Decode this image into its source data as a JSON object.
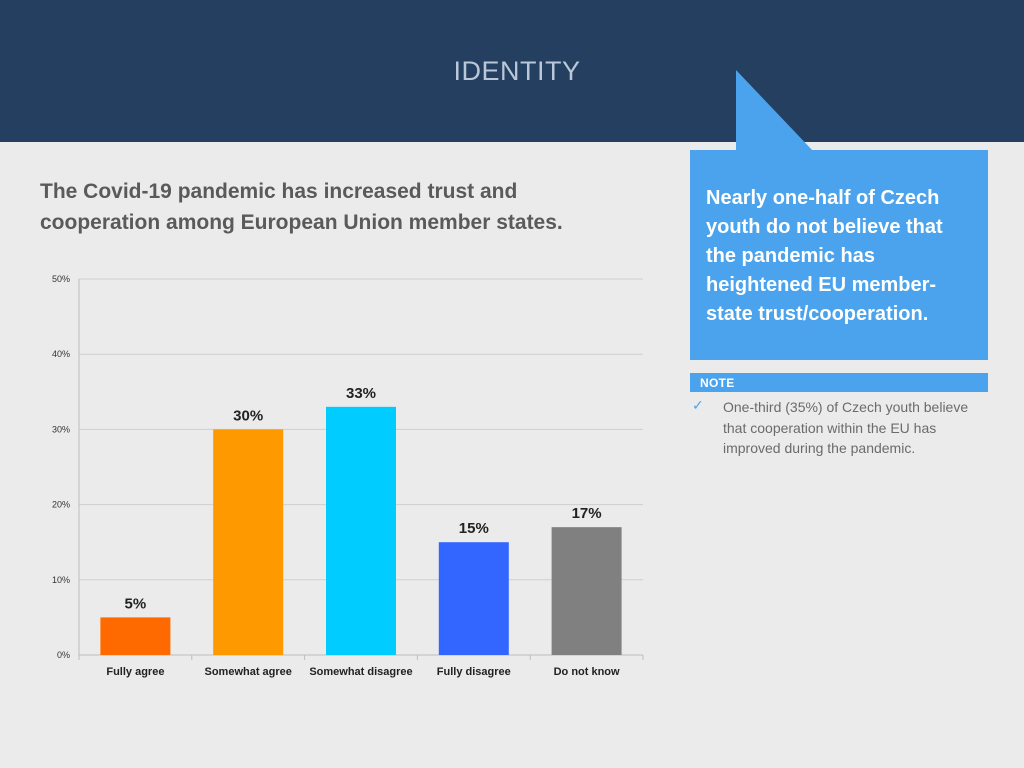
{
  "header": {
    "title": "IDENTITY"
  },
  "question": "The Covid-19 pandemic has increased trust and cooperation among European Union member states.",
  "callout": {
    "text": "Nearly one-half of Czech youth do not believe that the pandemic has heightened EU member-state trust/cooperation."
  },
  "note": {
    "label": "NOTE",
    "icon": "checkmark-icon",
    "text": "One-third (35%) of Czech youth believe that cooperation within the EU has improved during the pandemic."
  },
  "colors": {
    "header": "#243f60",
    "accent": "#4aa3ec"
  },
  "chart_data": {
    "type": "bar",
    "title": "",
    "xlabel": "",
    "ylabel": "",
    "ylim": [
      0,
      50
    ],
    "yticks": [
      0,
      10,
      20,
      30,
      40,
      50
    ],
    "ytick_labels": [
      "0%",
      "10%",
      "20%",
      "30%",
      "40%",
      "50%"
    ],
    "grid": true,
    "categories": [
      "Fully agree",
      "Somewhat agree",
      "Somewhat disagree",
      "Fully disagree",
      "Do not know"
    ],
    "values": [
      5,
      30,
      33,
      15,
      17
    ],
    "data_labels": [
      "5%",
      "30%",
      "33%",
      "15%",
      "17%"
    ],
    "colors": [
      "#ff6a00",
      "#ff9900",
      "#00ccff",
      "#3366ff",
      "#808080"
    ]
  }
}
